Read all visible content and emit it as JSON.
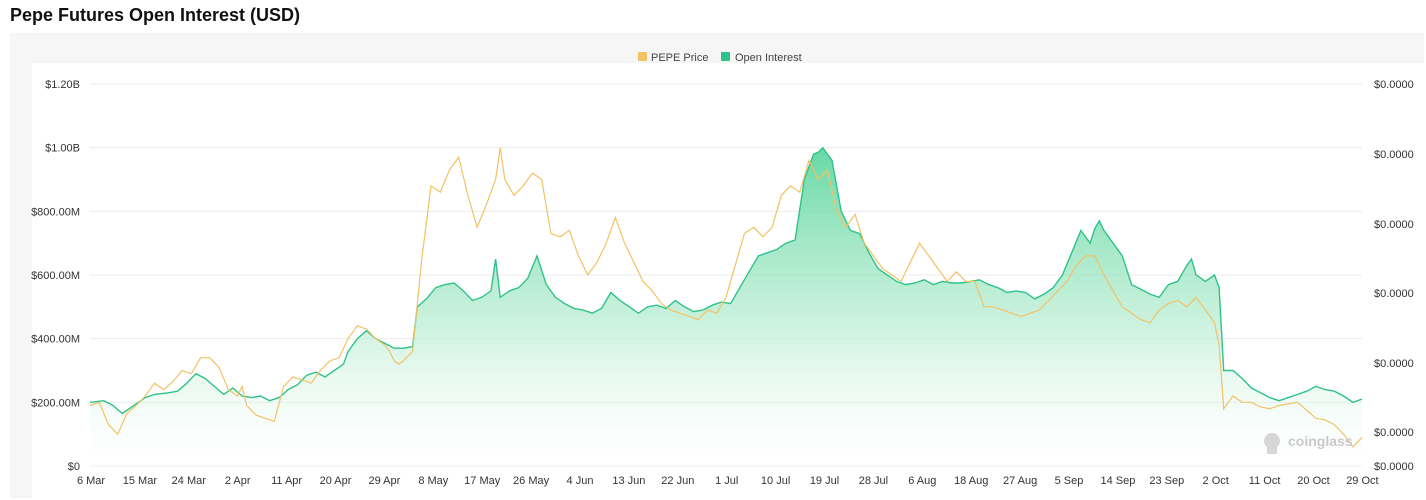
{
  "page": {
    "title": "Pepe Futures Open Interest (USD)"
  },
  "colors": {
    "price": "#f2c266",
    "oi_line": "#2fc28a",
    "oi_fill_top": "#5fd6a0",
    "oi_fill_bottom": "#ffffff"
  },
  "watermark": "coinglass",
  "chart_data": {
    "type": "area",
    "title": "Pepe Futures Open Interest (USD)",
    "legend": [
      "PEPE Price",
      "Open Interest"
    ],
    "legend_position": "top-center",
    "x_ticks": [
      "6 Mar",
      "15 Mar",
      "24 Mar",
      "2 Apr",
      "11 Apr",
      "20 Apr",
      "29 Apr",
      "8 May",
      "17 May",
      "26 May",
      "4 Jun",
      "13 Jun",
      "22 Jun",
      "1 Jul",
      "10 Jul",
      "19 Jul",
      "28 Jul",
      "6 Aug",
      "18 Aug",
      "27 Aug",
      "5 Sep",
      "14 Sep",
      "23 Sep",
      "2 Oct",
      "11 Oct",
      "20 Oct",
      "29 Oct"
    ],
    "y_left_ticks": [
      "$0",
      "$200.00M",
      "$400.00M",
      "$600.00M",
      "$800.00M",
      "$1.00B",
      "$1.20B"
    ],
    "y_left_range": [
      0,
      1.2
    ],
    "y_left_unit": "B USD",
    "y_right_ticks": [
      "$0.0000",
      "$0.0000",
      "$0.0000",
      "$0.0000",
      "$0.0000",
      "$0.0000",
      "$0.0000"
    ],
    "grid": "horizontal",
    "series": [
      {
        "name": "Open Interest",
        "type": "area",
        "points": [
          [
            0,
            0.2
          ],
          [
            3,
            0.205
          ],
          [
            5,
            0.19
          ],
          [
            7,
            0.165
          ],
          [
            9,
            0.185
          ],
          [
            12,
            0.215
          ],
          [
            14,
            0.225
          ],
          [
            17,
            0.23
          ],
          [
            19,
            0.235
          ],
          [
            21,
            0.26
          ],
          [
            23,
            0.29
          ],
          [
            25,
            0.275
          ],
          [
            27,
            0.25
          ],
          [
            29,
            0.225
          ],
          [
            31,
            0.245
          ],
          [
            33,
            0.22
          ],
          [
            35,
            0.215
          ],
          [
            37,
            0.22
          ],
          [
            39,
            0.205
          ],
          [
            41,
            0.215
          ],
          [
            43,
            0.24
          ],
          [
            45,
            0.255
          ],
          [
            47,
            0.285
          ],
          [
            49,
            0.295
          ],
          [
            51,
            0.28
          ],
          [
            53,
            0.3
          ],
          [
            55,
            0.32
          ],
          [
            56,
            0.36
          ],
          [
            58,
            0.4
          ],
          [
            60,
            0.425
          ],
          [
            62,
            0.4
          ],
          [
            64,
            0.385
          ],
          [
            66,
            0.37
          ],
          [
            68,
            0.37
          ],
          [
            70,
            0.375
          ],
          [
            71,
            0.5
          ],
          [
            73,
            0.525
          ],
          [
            75,
            0.56
          ],
          [
            77,
            0.57
          ],
          [
            79,
            0.575
          ],
          [
            81,
            0.55
          ],
          [
            83,
            0.52
          ],
          [
            85,
            0.53
          ],
          [
            87,
            0.55
          ],
          [
            88,
            0.65
          ],
          [
            89,
            0.53
          ],
          [
            91,
            0.55
          ],
          [
            93,
            0.56
          ],
          [
            95,
            0.59
          ],
          [
            97,
            0.66
          ],
          [
            99,
            0.57
          ],
          [
            101,
            0.53
          ],
          [
            103,
            0.51
          ],
          [
            105,
            0.495
          ],
          [
            107,
            0.49
          ],
          [
            109,
            0.48
          ],
          [
            111,
            0.495
          ],
          [
            113,
            0.545
          ],
          [
            115,
            0.52
          ],
          [
            117,
            0.5
          ],
          [
            119,
            0.48
          ],
          [
            121,
            0.5
          ],
          [
            123,
            0.505
          ],
          [
            125,
            0.495
          ],
          [
            127,
            0.52
          ],
          [
            129,
            0.5
          ],
          [
            131,
            0.485
          ],
          [
            133,
            0.49
          ],
          [
            135,
            0.505
          ],
          [
            137,
            0.515
          ],
          [
            139,
            0.51
          ],
          [
            141,
            0.56
          ],
          [
            143,
            0.61
          ],
          [
            145,
            0.66
          ],
          [
            147,
            0.67
          ],
          [
            149,
            0.68
          ],
          [
            151,
            0.7
          ],
          [
            153,
            0.71
          ],
          [
            155,
            0.9
          ],
          [
            157,
            0.98
          ],
          [
            158,
            0.985
          ],
          [
            159,
            1.0
          ],
          [
            160,
            0.98
          ],
          [
            161,
            0.96
          ],
          [
            162,
            0.88
          ],
          [
            163,
            0.8
          ],
          [
            165,
            0.74
          ],
          [
            167,
            0.73
          ],
          [
            169,
            0.67
          ],
          [
            171,
            0.62
          ],
          [
            173,
            0.6
          ],
          [
            175,
            0.58
          ],
          [
            177,
            0.57
          ],
          [
            179,
            0.575
          ],
          [
            181,
            0.585
          ],
          [
            183,
            0.57
          ],
          [
            185,
            0.58
          ],
          [
            187,
            0.575
          ],
          [
            189,
            0.575
          ],
          [
            191,
            0.58
          ],
          [
            193,
            0.585
          ],
          [
            195,
            0.57
          ],
          [
            197,
            0.56
          ],
          [
            199,
            0.545
          ],
          [
            201,
            0.55
          ],
          [
            203,
            0.545
          ],
          [
            205,
            0.525
          ],
          [
            207,
            0.54
          ],
          [
            209,
            0.56
          ],
          [
            211,
            0.6
          ],
          [
            213,
            0.67
          ],
          [
            215,
            0.74
          ],
          [
            217,
            0.7
          ],
          [
            218,
            0.745
          ],
          [
            219,
            0.77
          ],
          [
            220,
            0.74
          ],
          [
            222,
            0.7
          ],
          [
            224,
            0.66
          ],
          [
            226,
            0.57
          ],
          [
            228,
            0.555
          ],
          [
            230,
            0.54
          ],
          [
            232,
            0.53
          ],
          [
            234,
            0.57
          ],
          [
            236,
            0.58
          ],
          [
            238,
            0.63
          ],
          [
            239,
            0.65
          ],
          [
            240,
            0.6
          ],
          [
            242,
            0.58
          ],
          [
            244,
            0.6
          ],
          [
            245,
            0.56
          ],
          [
            246,
            0.3
          ],
          [
            248,
            0.3
          ],
          [
            250,
            0.275
          ],
          [
            252,
            0.245
          ],
          [
            254,
            0.23
          ],
          [
            256,
            0.215
          ],
          [
            258,
            0.205
          ],
          [
            260,
            0.215
          ],
          [
            262,
            0.225
          ],
          [
            264,
            0.235
          ],
          [
            266,
            0.25
          ],
          [
            268,
            0.24
          ],
          [
            270,
            0.235
          ],
          [
            272,
            0.22
          ],
          [
            274,
            0.2
          ],
          [
            276,
            0.21
          ]
        ]
      },
      {
        "name": "PEPE Price",
        "type": "line",
        "points": [
          [
            0,
            0.19
          ],
          [
            2,
            0.2
          ],
          [
            4,
            0.13
          ],
          [
            6,
            0.1
          ],
          [
            8,
            0.165
          ],
          [
            10,
            0.19
          ],
          [
            12,
            0.22
          ],
          [
            14,
            0.26
          ],
          [
            16,
            0.24
          ],
          [
            18,
            0.265
          ],
          [
            20,
            0.3
          ],
          [
            22,
            0.29
          ],
          [
            24,
            0.34
          ],
          [
            26,
            0.34
          ],
          [
            28,
            0.31
          ],
          [
            30,
            0.24
          ],
          [
            32,
            0.22
          ],
          [
            33,
            0.25
          ],
          [
            34,
            0.19
          ],
          [
            36,
            0.16
          ],
          [
            38,
            0.15
          ],
          [
            40,
            0.14
          ],
          [
            42,
            0.25
          ],
          [
            44,
            0.28
          ],
          [
            46,
            0.27
          ],
          [
            48,
            0.26
          ],
          [
            50,
            0.3
          ],
          [
            52,
            0.33
          ],
          [
            54,
            0.34
          ],
          [
            56,
            0.4
          ],
          [
            58,
            0.44
          ],
          [
            60,
            0.43
          ],
          [
            62,
            0.4
          ],
          [
            64,
            0.38
          ],
          [
            65,
            0.36
          ],
          [
            66,
            0.33
          ],
          [
            67,
            0.32
          ],
          [
            68,
            0.33
          ],
          [
            70,
            0.36
          ],
          [
            72,
            0.65
          ],
          [
            74,
            0.88
          ],
          [
            76,
            0.86
          ],
          [
            78,
            0.93
          ],
          [
            80,
            0.97
          ],
          [
            82,
            0.85
          ],
          [
            84,
            0.75
          ],
          [
            86,
            0.82
          ],
          [
            88,
            0.9
          ],
          [
            89,
            1.0
          ],
          [
            90,
            0.9
          ],
          [
            92,
            0.85
          ],
          [
            94,
            0.88
          ],
          [
            96,
            0.92
          ],
          [
            98,
            0.9
          ],
          [
            100,
            0.73
          ],
          [
            102,
            0.72
          ],
          [
            104,
            0.74
          ],
          [
            106,
            0.66
          ],
          [
            108,
            0.6
          ],
          [
            110,
            0.64
          ],
          [
            112,
            0.7
          ],
          [
            114,
            0.78
          ],
          [
            116,
            0.7
          ],
          [
            118,
            0.64
          ],
          [
            120,
            0.58
          ],
          [
            122,
            0.55
          ],
          [
            124,
            0.51
          ],
          [
            126,
            0.49
          ],
          [
            128,
            0.48
          ],
          [
            130,
            0.47
          ],
          [
            132,
            0.46
          ],
          [
            134,
            0.49
          ],
          [
            136,
            0.48
          ],
          [
            138,
            0.53
          ],
          [
            140,
            0.63
          ],
          [
            142,
            0.73
          ],
          [
            144,
            0.75
          ],
          [
            146,
            0.72
          ],
          [
            148,
            0.75
          ],
          [
            150,
            0.85
          ],
          [
            152,
            0.88
          ],
          [
            154,
            0.86
          ],
          [
            156,
            0.96
          ],
          [
            158,
            0.9
          ],
          [
            160,
            0.93
          ],
          [
            162,
            0.8
          ],
          [
            164,
            0.75
          ],
          [
            166,
            0.79
          ],
          [
            168,
            0.7
          ],
          [
            170,
            0.66
          ],
          [
            172,
            0.62
          ],
          [
            174,
            0.6
          ],
          [
            176,
            0.58
          ],
          [
            178,
            0.64
          ],
          [
            180,
            0.7
          ],
          [
            182,
            0.66
          ],
          [
            184,
            0.62
          ],
          [
            186,
            0.58
          ],
          [
            188,
            0.61
          ],
          [
            190,
            0.58
          ],
          [
            192,
            0.58
          ],
          [
            194,
            0.5
          ],
          [
            196,
            0.5
          ],
          [
            198,
            0.49
          ],
          [
            200,
            0.48
          ],
          [
            202,
            0.47
          ],
          [
            204,
            0.48
          ],
          [
            206,
            0.49
          ],
          [
            208,
            0.52
          ],
          [
            210,
            0.55
          ],
          [
            212,
            0.58
          ],
          [
            214,
            0.63
          ],
          [
            216,
            0.66
          ],
          [
            218,
            0.66
          ],
          [
            220,
            0.6
          ],
          [
            222,
            0.55
          ],
          [
            224,
            0.5
          ],
          [
            226,
            0.48
          ],
          [
            228,
            0.46
          ],
          [
            230,
            0.45
          ],
          [
            232,
            0.49
          ],
          [
            234,
            0.51
          ],
          [
            236,
            0.52
          ],
          [
            238,
            0.5
          ],
          [
            240,
            0.53
          ],
          [
            242,
            0.49
          ],
          [
            244,
            0.45
          ],
          [
            245,
            0.38
          ],
          [
            246,
            0.18
          ],
          [
            248,
            0.22
          ],
          [
            250,
            0.2
          ],
          [
            252,
            0.2
          ],
          [
            254,
            0.185
          ],
          [
            256,
            0.18
          ],
          [
            258,
            0.19
          ],
          [
            260,
            0.195
          ],
          [
            262,
            0.2
          ],
          [
            264,
            0.175
          ],
          [
            266,
            0.15
          ],
          [
            268,
            0.145
          ],
          [
            270,
            0.13
          ],
          [
            272,
            0.1
          ],
          [
            274,
            0.06
          ],
          [
            276,
            0.09
          ]
        ]
      }
    ]
  }
}
